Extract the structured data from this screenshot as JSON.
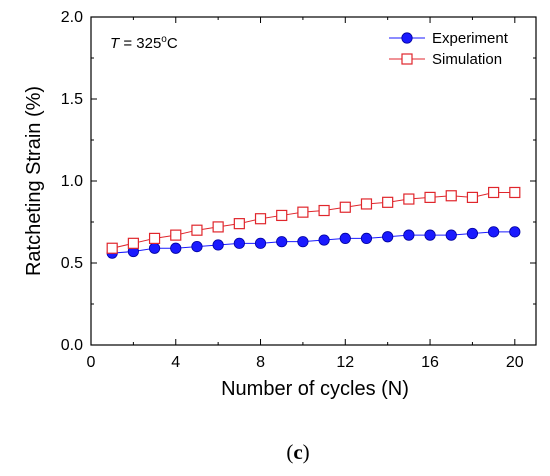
{
  "chart_data": {
    "type": "line",
    "title": "",
    "xlabel": "Number of cycles (N)",
    "ylabel": "Ratcheting Strain (%)",
    "xlim": [
      0,
      21
    ],
    "ylim": [
      0.0,
      2.0
    ],
    "xticks": [
      0,
      4,
      8,
      12,
      16,
      20
    ],
    "yticks": [
      0.0,
      0.5,
      1.0,
      1.5,
      2.0
    ],
    "xtick_labels": [
      "0",
      "4",
      "8",
      "12",
      "16",
      "20"
    ],
    "ytick_labels": [
      "0.0",
      "0.5",
      "1.0",
      "1.5",
      "2.0"
    ],
    "annotation": {
      "var": "T",
      "eq": " = 325",
      "sup": "o",
      "unit": "C"
    },
    "legend_position": "top-right",
    "grid": false,
    "x": [
      1,
      2,
      3,
      4,
      5,
      6,
      7,
      8,
      9,
      10,
      11,
      12,
      13,
      14,
      15,
      16,
      17,
      18,
      19,
      20
    ],
    "series": [
      {
        "name": "Experiment",
        "color": "#1a1aff",
        "marker": "filled-circle",
        "values": [
          0.56,
          0.57,
          0.59,
          0.59,
          0.6,
          0.61,
          0.62,
          0.62,
          0.63,
          0.63,
          0.64,
          0.65,
          0.65,
          0.66,
          0.67,
          0.67,
          0.67,
          0.68,
          0.69,
          0.69
        ]
      },
      {
        "name": "Simulation",
        "color": "#e0262c",
        "marker": "open-square",
        "values": [
          0.59,
          0.62,
          0.65,
          0.67,
          0.7,
          0.72,
          0.74,
          0.77,
          0.79,
          0.81,
          0.82,
          0.84,
          0.86,
          0.87,
          0.89,
          0.9,
          0.91,
          0.9,
          0.93,
          0.93
        ]
      }
    ]
  },
  "caption": {
    "open": "(",
    "letter": "c",
    "close": ")"
  }
}
